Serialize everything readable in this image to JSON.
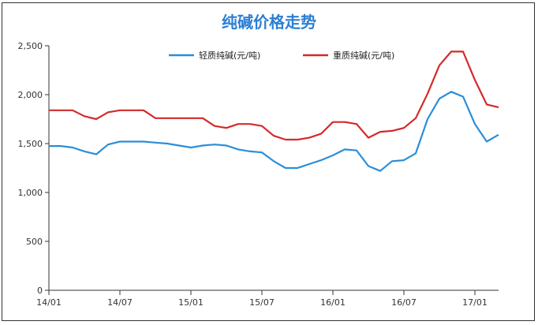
{
  "chart_data": {
    "type": "line",
    "title": "纯碱价格走势",
    "xlabel": "",
    "ylabel": "",
    "ylim": [
      0,
      2500
    ],
    "y_ticks": [
      "0",
      "500",
      "1,000",
      "1,500",
      "2,000",
      "2,500"
    ],
    "x_ticks": [
      "14/01",
      "14/07",
      "15/01",
      "15/07",
      "16/01",
      "16/07",
      "17/01"
    ],
    "grid": false,
    "legend_position": "top",
    "series": [
      {
        "name": "轻质纯碱(元/吨)",
        "color": "#2b8ed9",
        "points": [
          [
            "14/01",
            1475
          ],
          [
            "14/02",
            1475
          ],
          [
            "14/03",
            1460
          ],
          [
            "14/04",
            1420
          ],
          [
            "14/05",
            1390
          ],
          [
            "14/06",
            1490
          ],
          [
            "14/07",
            1520
          ],
          [
            "14/08",
            1520
          ],
          [
            "14/09",
            1520
          ],
          [
            "14/10",
            1510
          ],
          [
            "14/11",
            1500
          ],
          [
            "14/12",
            1480
          ],
          [
            "15/01",
            1460
          ],
          [
            "15/02",
            1480
          ],
          [
            "15/03",
            1490
          ],
          [
            "15/04",
            1480
          ],
          [
            "15/05",
            1440
          ],
          [
            "15/06",
            1420
          ],
          [
            "15/07",
            1410
          ],
          [
            "15/08",
            1320
          ],
          [
            "15/09",
            1250
          ],
          [
            "15/10",
            1250
          ],
          [
            "15/11",
            1290
          ],
          [
            "15/12",
            1330
          ],
          [
            "16/01",
            1380
          ],
          [
            "16/02",
            1440
          ],
          [
            "16/03",
            1430
          ],
          [
            "16/04",
            1270
          ],
          [
            "16/05",
            1220
          ],
          [
            "16/06",
            1320
          ],
          [
            "16/07",
            1330
          ],
          [
            "16/08",
            1400
          ],
          [
            "16/09",
            1750
          ],
          [
            "16/10",
            1960
          ],
          [
            "16/11",
            2030
          ],
          [
            "16/12",
            1980
          ],
          [
            "17/01",
            1700
          ],
          [
            "17/02",
            1520
          ],
          [
            "17/03",
            1590
          ]
        ]
      },
      {
        "name": "重质纯碱(元/吨)",
        "color": "#d42a2a",
        "points": [
          [
            "14/01",
            1840
          ],
          [
            "14/02",
            1840
          ],
          [
            "14/03",
            1840
          ],
          [
            "14/04",
            1780
          ],
          [
            "14/05",
            1750
          ],
          [
            "14/06",
            1820
          ],
          [
            "14/07",
            1840
          ],
          [
            "14/08",
            1840
          ],
          [
            "14/09",
            1840
          ],
          [
            "14/10",
            1760
          ],
          [
            "14/11",
            1760
          ],
          [
            "14/12",
            1760
          ],
          [
            "15/01",
            1760
          ],
          [
            "15/02",
            1760
          ],
          [
            "15/03",
            1680
          ],
          [
            "15/04",
            1660
          ],
          [
            "15/05",
            1700
          ],
          [
            "15/06",
            1700
          ],
          [
            "15/07",
            1680
          ],
          [
            "15/08",
            1580
          ],
          [
            "15/09",
            1540
          ],
          [
            "15/10",
            1540
          ],
          [
            "15/11",
            1560
          ],
          [
            "15/12",
            1600
          ],
          [
            "16/01",
            1720
          ],
          [
            "16/02",
            1720
          ],
          [
            "16/03",
            1700
          ],
          [
            "16/04",
            1560
          ],
          [
            "16/05",
            1620
          ],
          [
            "16/06",
            1630
          ],
          [
            "16/07",
            1660
          ],
          [
            "16/08",
            1760
          ],
          [
            "16/09",
            2010
          ],
          [
            "16/10",
            2300
          ],
          [
            "16/11",
            2440
          ],
          [
            "16/12",
            2440
          ],
          [
            "17/01",
            2150
          ],
          [
            "17/02",
            1900
          ],
          [
            "17/03",
            1870
          ]
        ]
      }
    ]
  }
}
